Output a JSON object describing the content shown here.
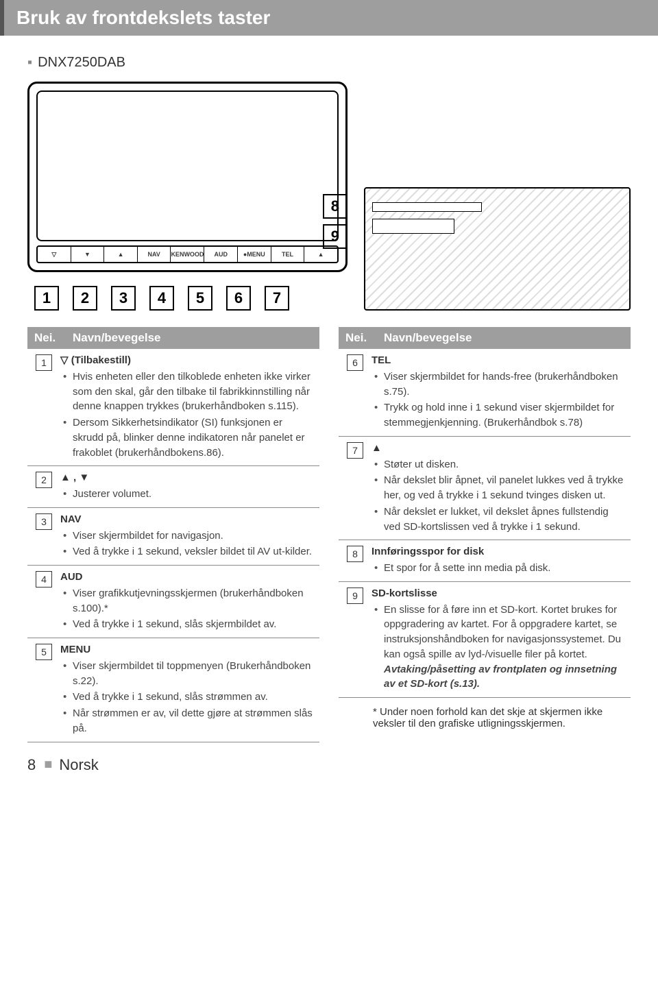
{
  "title": "Bruk av frontdekslets taster",
  "model": "DNX7250DAB",
  "front_buttons": [
    "▽",
    "▼",
    "▲",
    "NAV",
    "KENWOOD",
    "AUD",
    "●MENU",
    "TEL",
    "▲"
  ],
  "callouts_main": [
    "1",
    "2",
    "3",
    "4",
    "5",
    "6",
    "7"
  ],
  "callouts_side": [
    "8",
    "9"
  ],
  "table_head_left": "Nei.",
  "table_head_right": "Navn/bevegelse",
  "left_rows": [
    {
      "num": "1",
      "title": "▽ (Tilbakestill)",
      "items": [
        "Hvis enheten eller den tilkoblede enheten ikke virker som den skal, går den tilbake til fabrikkinnstilling når denne knappen trykkes (brukerhåndboken s.115).",
        "Dersom Sikkerhetsindikator (SI) funksjonen er skrudd på, blinker denne indikatoren når panelet er frakoblet (brukerhåndbokens.86)."
      ]
    },
    {
      "num": "2",
      "title": "▲ , ▼",
      "items": [
        "Justerer volumet."
      ]
    },
    {
      "num": "3",
      "title": "NAV",
      "items": [
        "Viser skjermbildet for navigasjon.",
        "Ved å trykke i 1 sekund, veksler bildet til AV ut-kilder."
      ]
    },
    {
      "num": "4",
      "title": "AUD",
      "items": [
        "Viser grafikkutjevningsskjermen (brukerhåndboken s.100).*",
        "Ved å trykke i 1 sekund, slås skjermbildet av."
      ]
    },
    {
      "num": "5",
      "title": "MENU",
      "items": [
        "Viser skjermbildet til toppmenyen (Brukerhåndboken s.22).",
        "Ved å trykke i 1 sekund, slås strømmen av.",
        "Når strømmen er av, vil dette gjøre at strømmen slås på."
      ]
    }
  ],
  "right_rows": [
    {
      "num": "6",
      "title": "TEL",
      "items": [
        "Viser skjermbildet for hands-free (brukerhåndboken s.75).",
        "Trykk og hold inne i 1 sekund viser skjermbildet for stemmegjenkjenning. (Brukerhåndbok s.78)"
      ]
    },
    {
      "num": "7",
      "title": "▲",
      "items": [
        "Støter ut disken.",
        "Når dekslet blir åpnet, vil panelet lukkes ved å trykke her, og ved å trykke i 1 sekund tvinges disken ut.",
        "Når dekslet er lukket, vil dekslet åpnes fullstendig ved SD-kortslissen ved å trykke i 1 sekund."
      ]
    },
    {
      "num": "8",
      "title": "Innføringsspor for disk",
      "items": [
        "Et spor for å sette inn media på disk."
      ]
    },
    {
      "num": "9",
      "title": "SD-kortslisse",
      "items": [
        "En slisse for å føre inn et SD-kort. Kortet brukes for oppgradering av kartet. For å oppgradere kartet, se instruksjonshåndboken for navigasjonssystemet. Du kan også spille av lyd-/visuelle filer på kortet."
      ],
      "extra_emph": "Avtaking/påsetting av frontplaten og innsetning av et SD-kort (s.13)."
    }
  ],
  "footnote": "* Under noen forhold kan det skje at skjermen ikke veksler til den grafiske utligningsskjermen.",
  "page_number": "8",
  "language": "Norsk"
}
